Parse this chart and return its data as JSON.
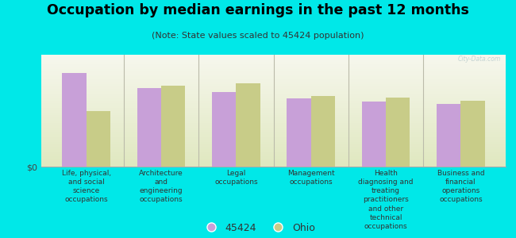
{
  "title": "Occupation by median earnings in the past 12 months",
  "subtitle": "(Note: State values scaled to 45424 population)",
  "background_color": "#00e8e8",
  "plot_bg_top": "#f8f8f0",
  "plot_bg_bottom": "#e0e8c0",
  "categories": [
    "Life, physical,\nand social\nscience\noccupations",
    "Architecture\nand\nengineering\noccupations",
    "Legal\noccupations",
    "Management\noccupations",
    "Health\ndiagnosing and\ntreating\npractitioners\nand other\ntechnical\noccupations",
    "Business and\nfinancial\noperations\noccupations"
  ],
  "values_45424": [
    0.88,
    0.74,
    0.7,
    0.64,
    0.61,
    0.59
  ],
  "values_ohio": [
    0.52,
    0.76,
    0.78,
    0.66,
    0.65,
    0.62
  ],
  "color_45424": "#c8a0d8",
  "color_ohio": "#c8cc88",
  "legend_45424": "45424",
  "legend_ohio": "Ohio",
  "ylabel": "$0",
  "watermark": "City-Data.com",
  "title_fontsize": 12.5,
  "subtitle_fontsize": 8,
  "label_fontsize": 6.5,
  "tick_fontsize": 8
}
